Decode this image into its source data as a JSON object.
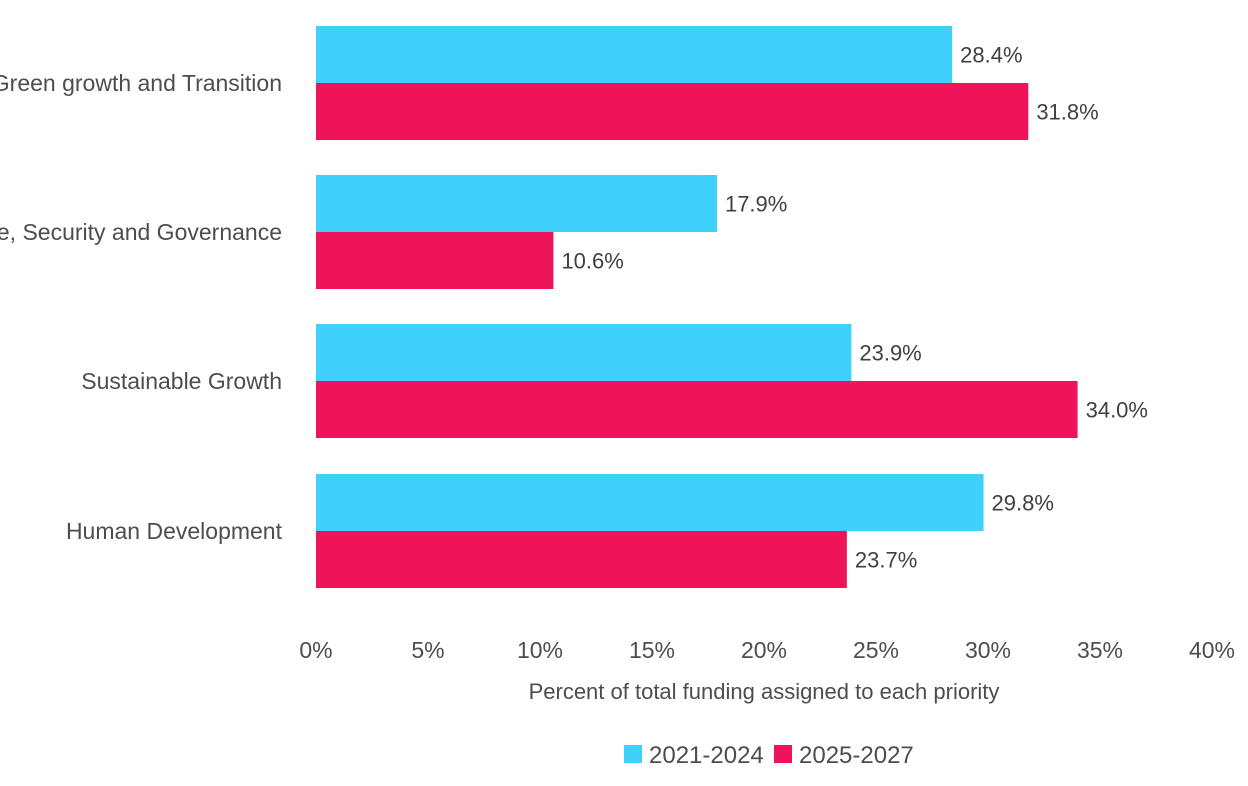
{
  "chart_data": {
    "type": "bar",
    "orientation": "horizontal",
    "categories": [
      "Green growth and Transition",
      "Peace, Security and Governance",
      "Sustainable Growth",
      "Human Development"
    ],
    "series": [
      {
        "name": "2021-2024",
        "color": "#40d0fc",
        "values": [
          28.4,
          17.9,
          23.9,
          29.8
        ],
        "labels": [
          "28.4%",
          "17.9%",
          "23.9%",
          "29.8%"
        ]
      },
      {
        "name": "2025-2027",
        "color": "#ee1459",
        "values": [
          31.8,
          10.6,
          34.0,
          23.7
        ],
        "labels": [
          "31.8%",
          "10.6%",
          "34.0%",
          "23.7%"
        ]
      }
    ],
    "xlabel": "Percent of total funding assigned to each priority",
    "xlim": [
      0,
      40
    ],
    "xticks": [
      0,
      5,
      10,
      15,
      20,
      25,
      30,
      35,
      40
    ],
    "xtick_labels": [
      "0%",
      "5%",
      "10%",
      "15%",
      "20%",
      "25%",
      "30%",
      "35%",
      "40%"
    ],
    "grid": false,
    "legend_position": "bottom-center"
  }
}
